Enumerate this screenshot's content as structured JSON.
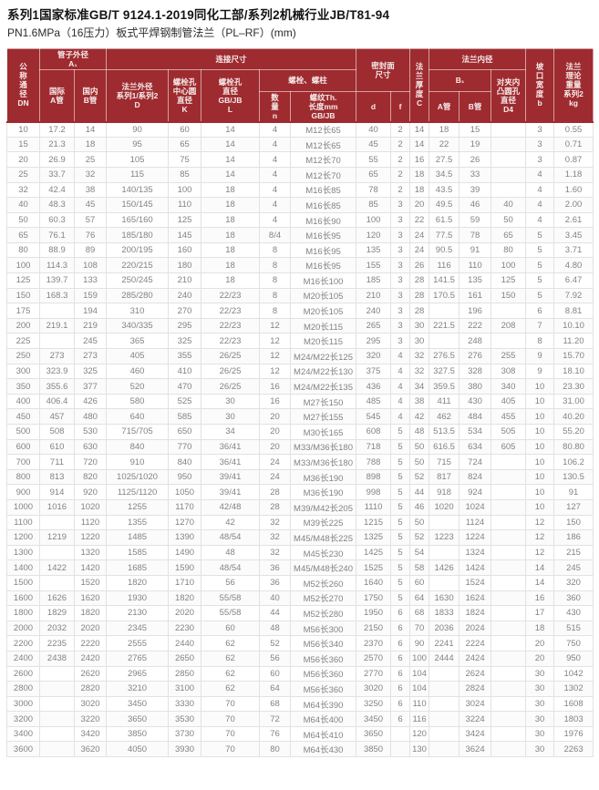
{
  "page": {
    "title": "系列1国家标准GB/T 9124.1-2019同化工部/系列2机械行业JB/T81-94",
    "subtitle": "PN1.6MPa（16压力）板式平焊钢制管法兰（PL–RF）(mm)"
  },
  "colors": {
    "header_bg": "#9e2b30",
    "header_text": "#f7eceb",
    "body_text": "#838383",
    "row_border": "#e2e2e2",
    "title_text": "#151515"
  },
  "table": {
    "headers": {
      "dn": "公\n称\n通\n径\nDN",
      "pipe_od": "管子外径\nA₁",
      "intl_a": "国际\nA管",
      "domestic_b": "国内\nB管",
      "connect": "连接尺寸",
      "flange_od": "法兰外径\n系列1/系列2\nD",
      "bolt_circle": "螺栓孔\n中心圆\n直径\nK",
      "bolt_hole": "螺栓孔\n直径\nGB/JB\nL",
      "bolts": "螺栓、螺柱",
      "qty": "数\n量\nn",
      "thread": "螺纹Th.\n长度mm\nGB/JB",
      "seal_face": "密封面\n尺寸",
      "d": "d",
      "f": "f",
      "thickness": "法\n兰\n厚\n度\nC",
      "inner_dia": "法兰内径",
      "b1": "B₁",
      "b1_a": "A管",
      "b1_b": "B管",
      "d4": "对夹内\n凸圆孔\n直径\nD4",
      "groove": "坡\n口\n宽\n度\nb",
      "weight": "法兰\n理论\n重量\n系列2\nkg"
    },
    "rows": [
      [
        "10",
        "17.2",
        "14",
        "90",
        "60",
        "14",
        "4",
        "M12长65",
        "40",
        "2",
        "14",
        "18",
        "15",
        "",
        "3",
        "0.55"
      ],
      [
        "15",
        "21.3",
        "18",
        "95",
        "65",
        "14",
        "4",
        "M12长65",
        "45",
        "2",
        "14",
        "22",
        "19",
        "",
        "3",
        "0.71"
      ],
      [
        "20",
        "26.9",
        "25",
        "105",
        "75",
        "14",
        "4",
        "M12长70",
        "55",
        "2",
        "16",
        "27.5",
        "26",
        "",
        "3",
        "0.87"
      ],
      [
        "25",
        "33.7",
        "32",
        "115",
        "85",
        "14",
        "4",
        "M12长70",
        "65",
        "2",
        "18",
        "34.5",
        "33",
        "",
        "4",
        "1.18"
      ],
      [
        "32",
        "42.4",
        "38",
        "140/135",
        "100",
        "18",
        "4",
        "M16长85",
        "78",
        "2",
        "18",
        "43.5",
        "39",
        "",
        "4",
        "1.60"
      ],
      [
        "40",
        "48.3",
        "45",
        "150/145",
        "110",
        "18",
        "4",
        "M16长85",
        "85",
        "3",
        "20",
        "49.5",
        "46",
        "40",
        "4",
        "2.00"
      ],
      [
        "50",
        "60.3",
        "57",
        "165/160",
        "125",
        "18",
        "4",
        "M16长90",
        "100",
        "3",
        "22",
        "61.5",
        "59",
        "50",
        "4",
        "2.61"
      ],
      [
        "65",
        "76.1",
        "76",
        "185/180",
        "145",
        "18",
        "8/4",
        "M16长95",
        "120",
        "3",
        "24",
        "77.5",
        "78",
        "65",
        "5",
        "3.45"
      ],
      [
        "80",
        "88.9",
        "89",
        "200/195",
        "160",
        "18",
        "8",
        "M16长95",
        "135",
        "3",
        "24",
        "90.5",
        "91",
        "80",
        "5",
        "3.71"
      ],
      [
        "100",
        "114.3",
        "108",
        "220/215",
        "180",
        "18",
        "8",
        "M16长95",
        "155",
        "3",
        "26",
        "116",
        "110",
        "100",
        "5",
        "4.80"
      ],
      [
        "125",
        "139.7",
        "133",
        "250/245",
        "210",
        "18",
        "8",
        "M16长100",
        "185",
        "3",
        "28",
        "141.5",
        "135",
        "125",
        "5",
        "6.47"
      ],
      [
        "150",
        "168.3",
        "159",
        "285/280",
        "240",
        "22/23",
        "8",
        "M20长105",
        "210",
        "3",
        "28",
        "170.5",
        "161",
        "150",
        "5",
        "7.92"
      ],
      [
        "175",
        "",
        "194",
        "310",
        "270",
        "22/23",
        "8",
        "M20长105",
        "240",
        "3",
        "28",
        "",
        "196",
        "",
        "6",
        "8.81"
      ],
      [
        "200",
        "219.1",
        "219",
        "340/335",
        "295",
        "22/23",
        "12",
        "M20长115",
        "265",
        "3",
        "30",
        "221.5",
        "222",
        "208",
        "7",
        "10.10"
      ],
      [
        "225",
        "",
        "245",
        "365",
        "325",
        "22/23",
        "12",
        "M20长115",
        "295",
        "3",
        "30",
        "",
        "248",
        "",
        "8",
        "11.20"
      ],
      [
        "250",
        "273",
        "273",
        "405",
        "355",
        "26/25",
        "12",
        "M24/M22长125",
        "320",
        "4",
        "32",
        "276.5",
        "276",
        "255",
        "9",
        "15.70"
      ],
      [
        "300",
        "323.9",
        "325",
        "460",
        "410",
        "26/25",
        "12",
        "M24/M22长130",
        "375",
        "4",
        "32",
        "327.5",
        "328",
        "308",
        "9",
        "18.10"
      ],
      [
        "350",
        "355.6",
        "377",
        "520",
        "470",
        "26/25",
        "16",
        "M24/M22长135",
        "436",
        "4",
        "34",
        "359.5",
        "380",
        "340",
        "10",
        "23.30"
      ],
      [
        "400",
        "406.4",
        "426",
        "580",
        "525",
        "30",
        "16",
        "M27长150",
        "485",
        "4",
        "38",
        "411",
        "430",
        "405",
        "10",
        "31.00"
      ],
      [
        "450",
        "457",
        "480",
        "640",
        "585",
        "30",
        "20",
        "M27长155",
        "545",
        "4",
        "42",
        "462",
        "484",
        "455",
        "10",
        "40.20"
      ],
      [
        "500",
        "508",
        "530",
        "715/705",
        "650",
        "34",
        "20",
        "M30长165",
        "608",
        "5",
        "48",
        "513.5",
        "534",
        "505",
        "10",
        "55.20"
      ],
      [
        "600",
        "610",
        "630",
        "840",
        "770",
        "36/41",
        "20",
        "M33/M36长180",
        "718",
        "5",
        "50",
        "616.5",
        "634",
        "605",
        "10",
        "80.80"
      ],
      [
        "700",
        "711",
        "720",
        "910",
        "840",
        "36/41",
        "24",
        "M33/M36长180",
        "788",
        "5",
        "50",
        "715",
        "724",
        "",
        "10",
        "106.2"
      ],
      [
        "800",
        "813",
        "820",
        "1025/1020",
        "950",
        "39/41",
        "24",
        "M36长190",
        "898",
        "5",
        "52",
        "817",
        "824",
        "",
        "10",
        "130.5"
      ],
      [
        "900",
        "914",
        "920",
        "1125/1120",
        "1050",
        "39/41",
        "28",
        "M36长190",
        "998",
        "5",
        "44",
        "918",
        "924",
        "",
        "10",
        "91"
      ],
      [
        "1000",
        "1016",
        "1020",
        "1255",
        "1170",
        "42/48",
        "28",
        "M39/M42长205",
        "1110",
        "5",
        "46",
        "1020",
        "1024",
        "",
        "10",
        "127"
      ],
      [
        "1100",
        "",
        "1120",
        "1355",
        "1270",
        "42",
        "32",
        "M39长225",
        "1215",
        "5",
        "50",
        "",
        "1124",
        "",
        "12",
        "150"
      ],
      [
        "1200",
        "1219",
        "1220",
        "1485",
        "1390",
        "48/54",
        "32",
        "M45/M48长225",
        "1325",
        "5",
        "52",
        "1223",
        "1224",
        "",
        "12",
        "186"
      ],
      [
        "1300",
        "",
        "1320",
        "1585",
        "1490",
        "48",
        "32",
        "M45长230",
        "1425",
        "5",
        "54",
        "",
        "1324",
        "",
        "12",
        "215"
      ],
      [
        "1400",
        "1422",
        "1420",
        "1685",
        "1590",
        "48/54",
        "36",
        "M45/M48长240",
        "1525",
        "5",
        "58",
        "1426",
        "1424",
        "",
        "14",
        "245"
      ],
      [
        "1500",
        "",
        "1520",
        "1820",
        "1710",
        "56",
        "36",
        "M52长260",
        "1640",
        "5",
        "60",
        "",
        "1524",
        "",
        "14",
        "320"
      ],
      [
        "1600",
        "1626",
        "1620",
        "1930",
        "1820",
        "55/58",
        "40",
        "M52长270",
        "1750",
        "5",
        "64",
        "1630",
        "1624",
        "",
        "16",
        "360"
      ],
      [
        "1800",
        "1829",
        "1820",
        "2130",
        "2020",
        "55/58",
        "44",
        "M52长280",
        "1950",
        "6",
        "68",
        "1833",
        "1824",
        "",
        "17",
        "430"
      ],
      [
        "2000",
        "2032",
        "2020",
        "2345",
        "2230",
        "60",
        "48",
        "M56长300",
        "2150",
        "6",
        "70",
        "2036",
        "2024",
        "",
        "18",
        "515"
      ],
      [
        "2200",
        "2235",
        "2220",
        "2555",
        "2440",
        "62",
        "52",
        "M56长340",
        "2370",
        "6",
        "90",
        "2241",
        "2224",
        "",
        "20",
        "750"
      ],
      [
        "2400",
        "2438",
        "2420",
        "2765",
        "2650",
        "62",
        "56",
        "M56长360",
        "2570",
        "6",
        "100",
        "2444",
        "2424",
        "",
        "20",
        "950"
      ],
      [
        "2600",
        "",
        "2620",
        "2965",
        "2850",
        "62",
        "60",
        "M56长360",
        "2770",
        "6",
        "104",
        "",
        "2624",
        "",
        "30",
        "1042"
      ],
      [
        "2800",
        "",
        "2820",
        "3210",
        "3100",
        "62",
        "64",
        "M56长360",
        "3020",
        "6",
        "104",
        "",
        "2824",
        "",
        "30",
        "1302"
      ],
      [
        "3000",
        "",
        "3020",
        "3450",
        "3330",
        "70",
        "68",
        "M64长390",
        "3250",
        "6",
        "110",
        "",
        "3024",
        "",
        "30",
        "1608"
      ],
      [
        "3200",
        "",
        "3220",
        "3650",
        "3530",
        "70",
        "72",
        "M64长400",
        "3450",
        "6",
        "116",
        "",
        "3224",
        "",
        "30",
        "1803"
      ],
      [
        "3400",
        "",
        "3420",
        "3850",
        "3730",
        "70",
        "76",
        "M64长410",
        "3650",
        "",
        "120",
        "",
        "3424",
        "",
        "30",
        "1976"
      ],
      [
        "3600",
        "",
        "3620",
        "4050",
        "3930",
        "70",
        "80",
        "M64长430",
        "3850",
        "",
        "130",
        "",
        "3624",
        "",
        "30",
        "2263"
      ]
    ]
  }
}
